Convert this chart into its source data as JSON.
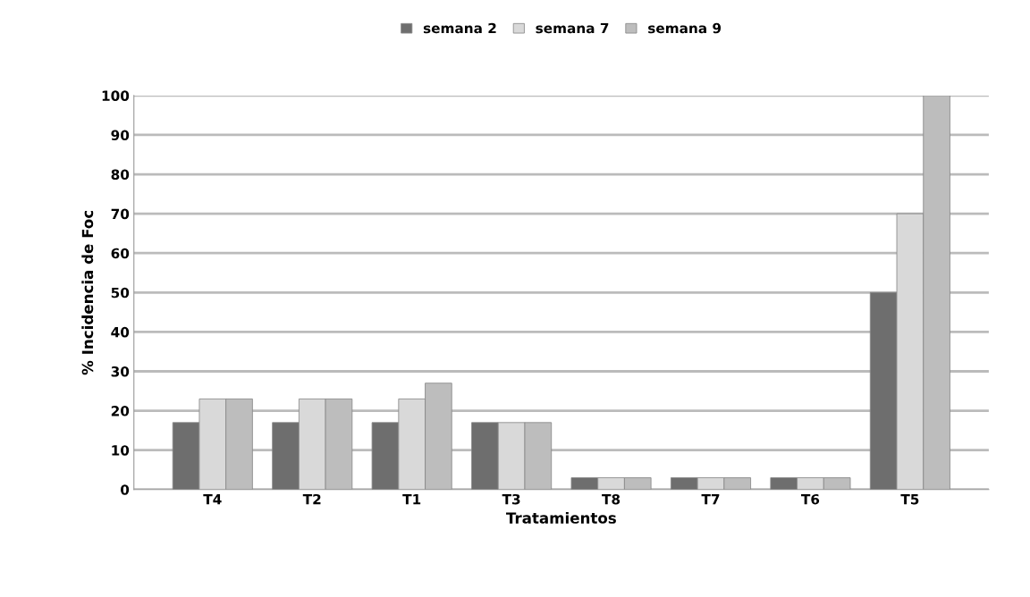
{
  "chart_data": {
    "type": "bar",
    "xlabel": "Tratamientos",
    "ylabel": "% Incidencia de Foc",
    "categories": [
      "T4",
      "T2",
      "T1",
      "T3",
      "T8",
      "T7",
      "T6",
      "T5"
    ],
    "series": [
      {
        "name": "semana 2",
        "color": "#6e6e6e",
        "values": [
          17,
          17,
          17,
          17,
          3,
          3,
          3,
          50
        ]
      },
      {
        "name": "semana 7",
        "color": "#d9d9d9",
        "values": [
          23,
          23,
          23,
          17,
          3,
          3,
          3,
          70
        ]
      },
      {
        "name": "semana 9",
        "color": "#bdbdbd",
        "values": [
          23,
          23,
          27,
          17,
          3,
          3,
          3,
          100
        ]
      }
    ],
    "ylim": [
      0,
      100
    ],
    "yticks": [
      0,
      10,
      20,
      30,
      40,
      50,
      60,
      70,
      80,
      90,
      100
    ],
    "grid": "y",
    "legend": "top"
  }
}
